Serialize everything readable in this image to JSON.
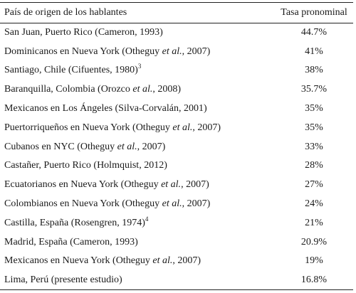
{
  "table": {
    "header": [
      "País de origen de los hablantes",
      "Tasa pronominal"
    ],
    "rows": [
      {
        "place": [
          "San Juan, Puerto Rico (Cameron, 1993)"
        ],
        "rate": "44.7%"
      },
      {
        "place": [
          "Dominicanos en Nueva York (Otheguy ",
          "et al.",
          ", 2007)"
        ],
        "rate": "41%"
      },
      {
        "place": [
          "Santiago, Chile (Cifuentes, 1980)"
        ],
        "note": "3",
        "rate": "38%"
      },
      {
        "place": [
          "Baranquilla, Colombia (Orozco ",
          "et al.",
          ", 2008)"
        ],
        "rate": "35.7%"
      },
      {
        "place": [
          "Mexicanos en Los Ángeles (Silva-Corvalán, 2001)"
        ],
        "rate": "35%"
      },
      {
        "place": [
          "Puertorriqueños en Nueva York (Otheguy ",
          "et al.",
          ", 2007)"
        ],
        "rate": "35%"
      },
      {
        "place": [
          "Cubanos en NYC (Otheguy ",
          "et al.",
          ", 2007)"
        ],
        "rate": "33%"
      },
      {
        "place": [
          "Castañer, Puerto Rico (Holmquist, 2012)"
        ],
        "rate": "28%"
      },
      {
        "place": [
          "Ecuatorianos en Nueva York (Otheguy ",
          "et al.",
          ", 2007)"
        ],
        "rate": "27%"
      },
      {
        "place": [
          "Colombianos en Nueva York (Otheguy ",
          "et al.",
          ", 2007)"
        ],
        "rate": "24%"
      },
      {
        "place": [
          "Castilla, España (Rosengren, 1974)"
        ],
        "note": "4",
        "rate": "21%"
      },
      {
        "place": [
          "Madrid, España (Cameron, 1993)"
        ],
        "rate": "20.9%"
      },
      {
        "place": [
          "Mexicanos en Nueva York (Otheguy ",
          "et al.",
          ", 2007)"
        ],
        "rate": "19%"
      },
      {
        "place": [
          "Lima, Perú (presente estudio)"
        ],
        "rate": "16.8%"
      }
    ]
  }
}
